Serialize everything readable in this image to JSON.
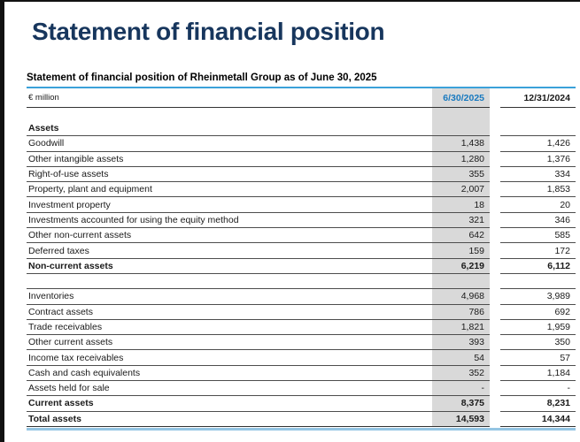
{
  "page": {
    "title": "Statement of financial position"
  },
  "table": {
    "caption": "Statement of financial position of Rheinmetall Group as of June 30, 2025",
    "unit_label": "€ million",
    "col_headers": [
      "6/30/2025",
      "12/31/2024"
    ],
    "rows": [
      {
        "type": "section",
        "label": "Assets",
        "v1": "",
        "v2": ""
      },
      {
        "type": "data",
        "label": "Goodwill",
        "v1": "1,438",
        "v2": "1,426"
      },
      {
        "type": "data",
        "label": "Other intangible assets",
        "v1": "1,280",
        "v2": "1,376"
      },
      {
        "type": "data",
        "label": "Right-of-use assets",
        "v1": "355",
        "v2": "334"
      },
      {
        "type": "data",
        "label": "Property, plant and equipment",
        "v1": "2,007",
        "v2": "1,853"
      },
      {
        "type": "data",
        "label": "Investment property",
        "v1": "18",
        "v2": "20"
      },
      {
        "type": "data",
        "label": "Investments accounted for using the equity method",
        "v1": "321",
        "v2": "346"
      },
      {
        "type": "data",
        "label": "Other non-current assets",
        "v1": "642",
        "v2": "585"
      },
      {
        "type": "data",
        "label": "Deferred taxes",
        "v1": "159",
        "v2": "172"
      },
      {
        "type": "total",
        "label": "Non-current assets",
        "v1": "6,219",
        "v2": "6,112"
      },
      {
        "type": "spacer",
        "label": "",
        "v1": "",
        "v2": ""
      },
      {
        "type": "data",
        "label": "Inventories",
        "v1": "4,968",
        "v2": "3,989"
      },
      {
        "type": "data",
        "label": "Contract assets",
        "v1": "786",
        "v2": "692"
      },
      {
        "type": "data",
        "label": "Trade receivables",
        "v1": "1,821",
        "v2": "1,959"
      },
      {
        "type": "data",
        "label": "Other current assets",
        "v1": "393",
        "v2": "350"
      },
      {
        "type": "data",
        "label": "Income tax receivables",
        "v1": "54",
        "v2": "57"
      },
      {
        "type": "data",
        "label": "Cash and cash equivalents",
        "v1": "352",
        "v2": "1,184"
      },
      {
        "type": "data",
        "label": "Assets held for sale",
        "v1": "-",
        "v2": "-"
      },
      {
        "type": "total",
        "label": "Current assets",
        "v1": "8,375",
        "v2": "8,231"
      },
      {
        "type": "grand_total",
        "label": "Total assets",
        "v1": "14,593",
        "v2": "14,344"
      }
    ]
  },
  "colors": {
    "title_navy": "#17365d",
    "accent_blue": "#3ba1d9",
    "date_blue": "#1879bf",
    "soft_blue": "#94c5e3",
    "column_gray": "#d9d9d9"
  }
}
